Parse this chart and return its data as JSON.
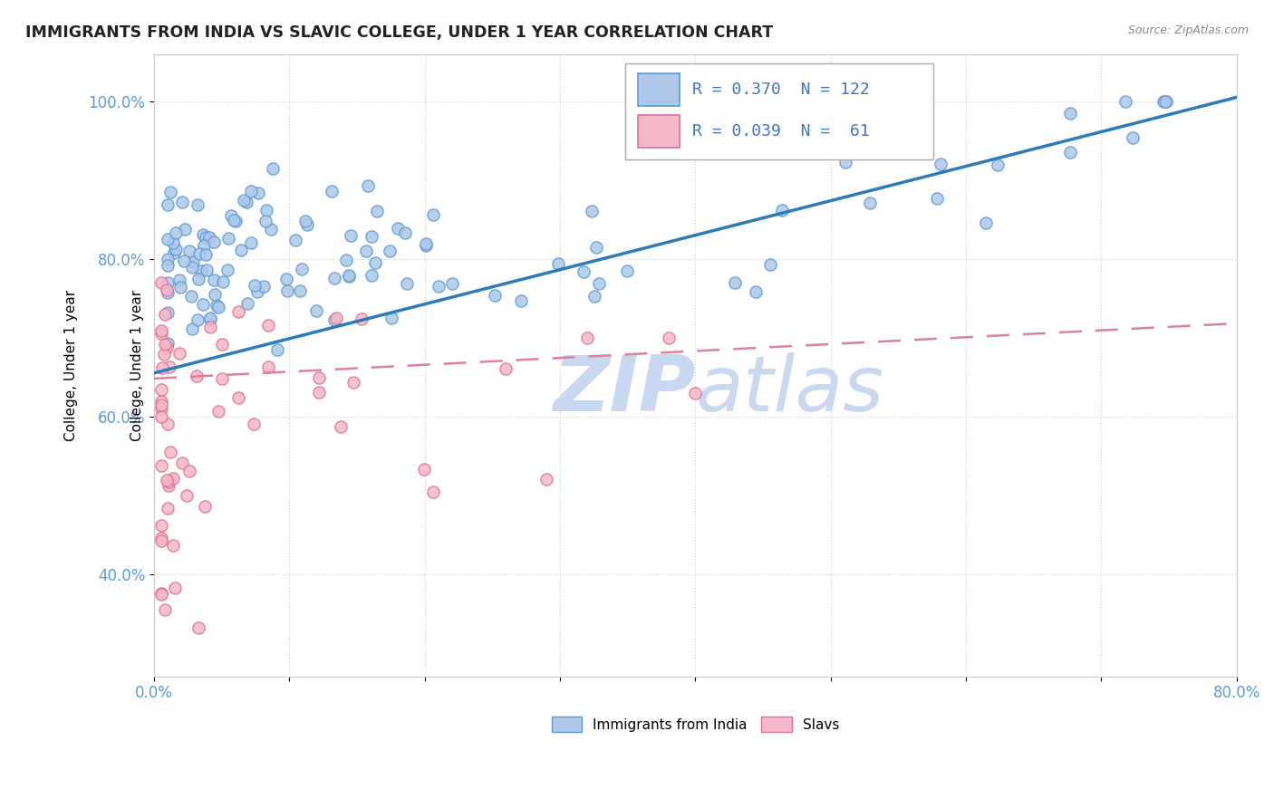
{
  "title": "IMMIGRANTS FROM INDIA VS SLAVIC COLLEGE, UNDER 1 YEAR CORRELATION CHART",
  "source": "Source: ZipAtlas.com",
  "ylabel": "College, Under 1 year",
  "xlim": [
    0.0,
    0.8
  ],
  "ylim": [
    0.27,
    1.06
  ],
  "color_blue_fill": "#adc8e8",
  "color_blue_edge": "#5b9bd5",
  "color_pink_fill": "#f4b8c8",
  "color_pink_edge": "#e07090",
  "color_blue_line": "#2b7bba",
  "color_pink_line": "#e08098",
  "color_text_blue": "#4472c4",
  "color_axis": "#5b9bd5",
  "watermark_color": "#c8d8f0",
  "legend_items": [
    "Immigrants from India",
    "Slavs"
  ],
  "blue_trend": [
    0.0,
    0.8,
    0.655,
    1.005
  ],
  "pink_trend": [
    0.0,
    0.8,
    0.648,
    0.718
  ]
}
